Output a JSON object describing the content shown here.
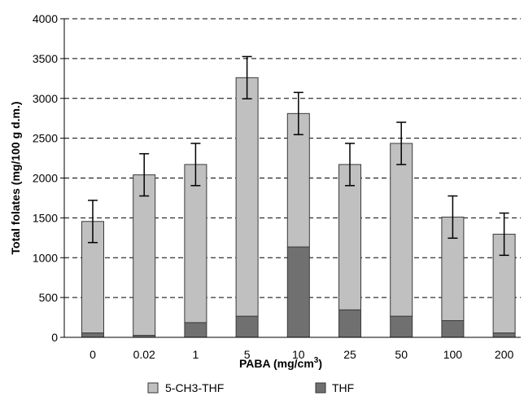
{
  "chart_data": {
    "type": "bar",
    "stacked": true,
    "categories": [
      "0",
      "0.02",
      "1",
      "5",
      "10",
      "25",
      "50",
      "100",
      "200"
    ],
    "series": [
      {
        "name": "THF",
        "color": "#707070",
        "values": [
          55,
          25,
          185,
          265,
          1135,
          345,
          265,
          210,
          55
        ]
      },
      {
        "name": "5-CH3-THF",
        "color": "#c0c0c0",
        "values": [
          1400,
          2015,
          1985,
          2995,
          1675,
          1825,
          2170,
          1300,
          1240
        ]
      }
    ],
    "totals": [
      1455,
      2040,
      2170,
      3260,
      2810,
      2170,
      2435,
      1510,
      1295
    ],
    "error_plus_minus": [
      265,
      265,
      265,
      265,
      265,
      265,
      265,
      265,
      265
    ],
    "xlabel": "PABA (mg/cm",
    "xlabel_superscript": "3",
    "xlabel_suffix": ")",
    "ylabel": "Total folates (mg/100 g d.m.)",
    "ylim": [
      0,
      4000
    ],
    "yticks": [
      0,
      500,
      1000,
      1500,
      2000,
      2500,
      3000,
      3500,
      4000
    ],
    "grid": "horizontal dashed",
    "legend": {
      "placement": "bottom",
      "items": [
        {
          "label": "5-CH3-THF",
          "color": "#c0c0c0"
        },
        {
          "label": "THF",
          "color": "#707070"
        }
      ]
    }
  }
}
